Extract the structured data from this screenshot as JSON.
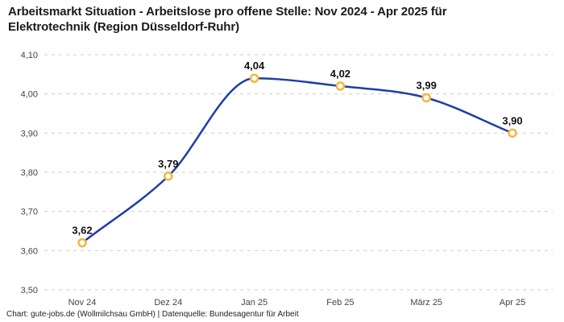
{
  "title": "Arbeitsmarkt Situation - Arbeitslose pro offene Stelle: Nov 2024 - Apr 2025 für Elektrotechnik (Region Düsseldorf-Ruhr)",
  "footer": "Chart: gute-jobs.de (Wollmilchsau GmbH) | Datenquelle: Bundesagentur für Arbeit",
  "colors": {
    "line": "#1f3da8",
    "marker_ring": "#f5b63a",
    "marker_fill": "#ffffff",
    "grid": "#cccccc",
    "tick_label": "#444444",
    "data_label": "#111111",
    "title": "#1a1a1a"
  },
  "chart_data": {
    "type": "line",
    "title": "Arbeitsmarkt Situation - Arbeitslose pro offene Stelle: Nov 2024 - Apr 2025 für Elektrotechnik (Region Düsseldorf-Ruhr)",
    "categories": [
      "Nov 24",
      "Dez 24",
      "Jan 25",
      "Feb 25",
      "März 25",
      "Apr 25"
    ],
    "values": [
      3.62,
      3.79,
      4.04,
      4.02,
      3.99,
      3.9
    ],
    "data_labels": [
      "3,62",
      "3,79",
      "4,04",
      "4,02",
      "3,99",
      "3,90"
    ],
    "y_tick_values": [
      3.5,
      3.6,
      3.7,
      3.8,
      3.9,
      4.0,
      4.1
    ],
    "y_tick_labels": [
      "3,50",
      "3,60",
      "3,70",
      "3,80",
      "3,90",
      "4,00",
      "4,10"
    ],
    "ylim": [
      3.5,
      4.1
    ],
    "xlabel": "",
    "ylabel": "",
    "grid": "horizontal-dashed",
    "legend": "none",
    "curve": "monotone",
    "source": "Bundesagentur für Arbeit"
  }
}
